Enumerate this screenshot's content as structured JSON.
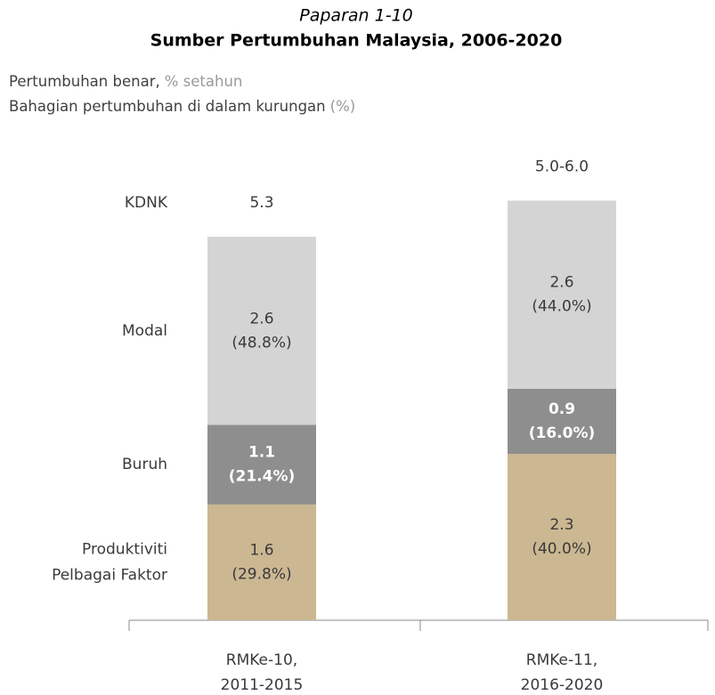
{
  "chart_data": {
    "type": "stacked_bar",
    "title": "Paparan 1-10",
    "subtitle": "Sumber Pertumbuhan Malaysia, 2006-2020",
    "notes": [
      [
        "Pertumbuhan benar,",
        "% setahun"
      ],
      [
        "Bahagian pertumbuhan di dalam kurungan",
        "(%)"
      ]
    ],
    "categories": [
      "RMKe-10,\n2011-2015",
      "RMKe-11,\n2016-2020"
    ],
    "series": [
      {
        "name": "Produktiviti\nPelbagai Faktor",
        "color": "#cbb792",
        "label_color": "#3a3a3a",
        "label_bold": false,
        "values": [
          1.6,
          2.3
        ],
        "value_labels": [
          "1.6\n(29.8%)",
          "2.3\n(40.0%)"
        ]
      },
      {
        "name": "Buruh",
        "color": "#8e8e8e",
        "label_color": "#ffffff",
        "label_bold": true,
        "values": [
          1.1,
          0.9
        ],
        "value_labels": [
          "1.1\n(21.4%)",
          "0.9\n(16.0%)"
        ]
      },
      {
        "name": "Modal",
        "color": "#d4d4d4",
        "label_color": "#3a3a3a",
        "label_bold": false,
        "values": [
          2.6,
          2.6
        ],
        "value_labels": [
          "2.6\n(48.8%)",
          "2.6\n(44.0%)"
        ]
      }
    ],
    "total_name": "KDNK",
    "total_labels": [
      "5.3",
      "5.0-6.0"
    ]
  }
}
